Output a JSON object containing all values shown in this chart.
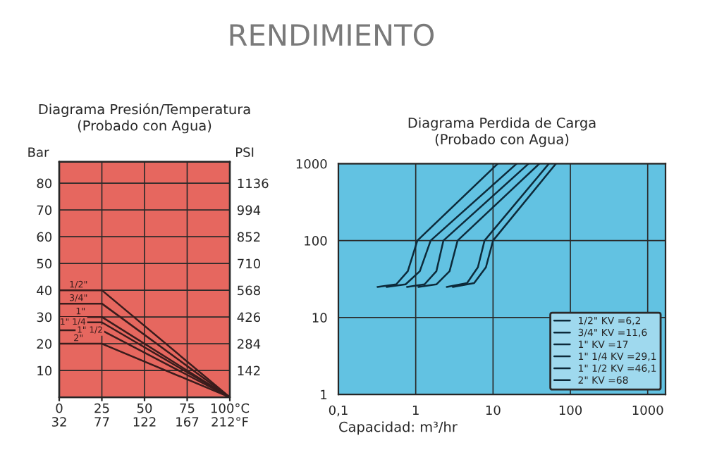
{
  "chart_data": [
    {
      "type": "line",
      "title": "Diagrama Presión/Temperatura",
      "subtitle": "(Probado con Agua)",
      "annotations": [
        "RENDIMIENTO"
      ],
      "ylabel": "Bar",
      "y2label": "PSI",
      "xlim": [
        0,
        100
      ],
      "xticks": [
        0,
        25,
        50,
        75,
        {
          "value": 100,
          "label": "100°C"
        }
      ],
      "x2lim": [
        32,
        212
      ],
      "x2ticks": [
        32,
        77,
        122,
        167,
        {
          "value": 212,
          "label": "212°F"
        }
      ],
      "ylim": [
        0,
        88
      ],
      "yticks": [
        10,
        20,
        30,
        40,
        50,
        60,
        70,
        80
      ],
      "y2lim": [
        0,
        1249.6
      ],
      "y2ticks": [
        142,
        284,
        426,
        568,
        710,
        852,
        994,
        1136
      ],
      "grid": true,
      "series": [
        {
          "name": "1/2\"",
          "color": "#3a1c1c",
          "x": [
            0,
            25,
            100
          ],
          "values": [
            40,
            40,
            0
          ]
        },
        {
          "name": "3/4\"",
          "color": "#3a1c1c",
          "x": [
            0,
            25,
            100
          ],
          "values": [
            35,
            35,
            0
          ]
        },
        {
          "name": "1\"",
          "color": "#3a1c1c",
          "x": [
            0,
            25,
            100
          ],
          "values": [
            30,
            30,
            0
          ]
        },
        {
          "name": "1\" 1/4",
          "color": "#3a1c1c",
          "x": [
            0,
            25,
            100
          ],
          "values": [
            28,
            28,
            0
          ]
        },
        {
          "name": "1\" 1/2",
          "color": "#3a1c1c",
          "x": [
            0,
            25,
            100
          ],
          "values": [
            25,
            25,
            0
          ]
        },
        {
          "name": "2\"",
          "color": "#3a1c1c",
          "x": [
            0,
            25,
            100
          ],
          "values": [
            20,
            20,
            0
          ]
        }
      ]
    },
    {
      "type": "line",
      "title": "Diagrama Perdida de Carga",
      "subtitle": "(Probado con Agua)",
      "xlabel": "Capacidad: m³/hr",
      "log": "xy",
      "xlim": [
        0.1,
        1700
      ],
      "xticks": [
        {
          "value": 0.1,
          "label": "0,1"
        },
        1,
        10,
        100,
        1000
      ],
      "ylim": [
        1,
        1000
      ],
      "yticks": [
        1,
        10,
        100,
        1000
      ],
      "grid": true,
      "legend": "bottom right",
      "series": [
        {
          "name": "1/2\" KV =6,2",
          "color": "#0d2a3a",
          "x": [
            0.32,
            0.56,
            0.79,
            1.05,
            11.5
          ],
          "values": [
            25,
            27,
            40,
            100,
            1000
          ]
        },
        {
          "name": "3/4\" KV =11,6",
          "color": "#0d2a3a",
          "x": [
            0.42,
            0.74,
            1.13,
            1.56,
            20.2
          ],
          "values": [
            25,
            27,
            40,
            100,
            1000
          ]
        },
        {
          "name": "1\" KV =17",
          "color": "#0d2a3a",
          "x": [
            0.77,
            1.3,
            1.85,
            2.28,
            28.8
          ],
          "values": [
            25,
            27,
            40,
            100,
            1000
          ]
        },
        {
          "name": "1\" 1/4 KV =29,1",
          "color": "#0d2a3a",
          "x": [
            1.08,
            1.85,
            2.74,
            3.48,
            39.7
          ],
          "values": [
            25,
            27,
            40,
            100,
            1000
          ]
        },
        {
          "name": "1\" 1/2 KV =46,1",
          "color": "#0d2a3a",
          "x": [
            2.52,
            4.61,
            6.37,
            7.76,
            52.7
          ],
          "values": [
            25,
            28,
            45,
            100,
            1000
          ]
        },
        {
          "name": "2\" KV =68",
          "color": "#0d2a3a",
          "x": [
            3.02,
            5.69,
            8.09,
            10,
            65
          ],
          "values": [
            25,
            28,
            45,
            100,
            1000
          ]
        }
      ]
    }
  ]
}
